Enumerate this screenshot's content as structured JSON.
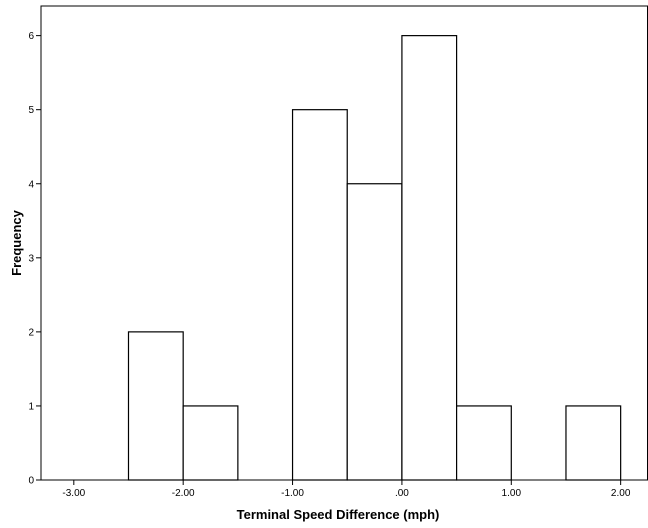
{
  "chart_data": {
    "type": "bar",
    "subtype": "histogram",
    "title": "",
    "xlabel": "Terminal Speed Difference (mph)",
    "ylabel": "Frequency",
    "xlim": [
      -3.3,
      2.25
    ],
    "ylim": [
      0,
      6.4
    ],
    "x_ticks": [
      -3,
      -2,
      -1,
      0,
      1,
      2
    ],
    "x_tick_labels": [
      "-3.00",
      "-2.00",
      "-1.00",
      ".00",
      "1.00",
      "2.00"
    ],
    "y_ticks": [
      0,
      1,
      2,
      3,
      4,
      5,
      6
    ],
    "y_tick_labels": [
      "0",
      "1",
      "2",
      "3",
      "4",
      "5",
      "6"
    ],
    "bin_width": 0.5,
    "bins": [
      {
        "start": -2.5,
        "end": -2.0,
        "count": 2
      },
      {
        "start": -2.0,
        "end": -1.5,
        "count": 1
      },
      {
        "start": -1.0,
        "end": -0.5,
        "count": 5
      },
      {
        "start": -0.5,
        "end": 0.0,
        "count": 4
      },
      {
        "start": 0.0,
        "end": 0.5,
        "count": 6
      },
      {
        "start": 0.5,
        "end": 1.0,
        "count": 1
      },
      {
        "start": 1.5,
        "end": 2.0,
        "count": 1
      }
    ],
    "grid": false,
    "bar_fill": "#ffffff",
    "bar_stroke": "#000000"
  }
}
